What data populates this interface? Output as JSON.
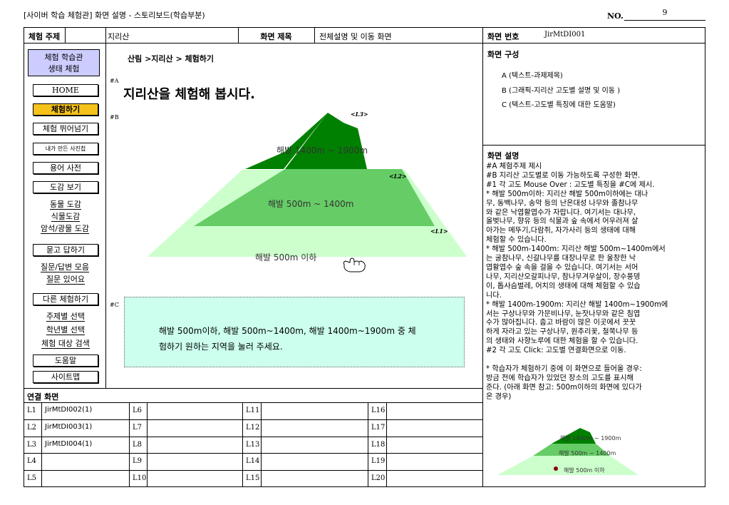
{
  "document": {
    "title": "[사이버 학습 체험관] 화면 설명 - 스토리보드(학습부분)",
    "no_label": "NO.",
    "no_value": "9"
  },
  "header": {
    "subject_label": "체험 주제",
    "subject_value": "지리산",
    "screen_title_label": "화면 제목",
    "screen_title_value": "전체설명 및 이동 화면",
    "screen_no_label": "화면 번호",
    "screen_no_value": "JirMtDI001"
  },
  "menu": {
    "top_line1": "체험 학습관",
    "top_line2": "생태 체험",
    "home": "HOME",
    "experience": "체험하기",
    "skip": "체험 뛰어넘기",
    "photos": "내가 만든 사진첩",
    "dictionary": "용어 사전",
    "guide": "도감 보기",
    "animals": "동물 도감",
    "plants": "식물도감",
    "rocks": "암석/광물 도감",
    "qa": "묻고 답하기",
    "qa_collection": "질문/답변 모음",
    "questions": "질문 있어요",
    "other": "다른 체험하기",
    "by_topic": "주제별 선택",
    "by_grade": "학년별 선택",
    "search": "체험 대상 검색",
    "help": "도움말",
    "sitemap": "사이트맵"
  },
  "main": {
    "breadcrumb": "산림 >지리산 > 체험하기",
    "tag_a": "#A",
    "title": "지리산을 체험해 봅시다.",
    "tag_b": "#B",
    "tag_c": "#C",
    "level3_text": "해발 1400m ~ 1900m",
    "level2_text": "해발 500m ~ 1400m",
    "level1_text": "해발 500m 이하",
    "label_l3": "<L3>",
    "label_l2": "<L2>",
    "label_l1": "<L1>",
    "help_line1": "해발 500m이하, 해발 500m~1400m, 해발 1400m~1900m 중 체",
    "help_line2": "험하기 원하는 지역을 눌러 주세요."
  },
  "right": {
    "composition_label": "화면 구성",
    "comp_a": "A (텍스트-과제제목)",
    "comp_b": "B (그래픽-지리산 고도별 설명 및 이동 )",
    "comp_c": "C (텍스트-고도별 특징에 대한 도움말)",
    "description_label": "화면 설명",
    "desc_lines": [
      "#A  체험주제 제시",
      "#B  지리산 고도별로 이동 가능하도록 구성한 화면.",
      "  #1 각 고도  Mouse Over : 고도별 특징을 #C에 제시.",
      "* 해발 500m이하: 지리산 해발 500m이하에는 대나",
      "무, 동백나무, 송악 등의 난온대성 나무와 졸참나무",
      "와 같은 낙엽활엽수가 자랍니다. 여기서는  대나무,",
      "올벚나무, 향유 등의 식물과 숲 속에서 어우러져 살",
      "아가는 메뚜기,다람쥐, 자가사리 등의 생태에 대해",
      "체험할 수 있습니다.",
      "* 해발 500m-1400m: 지리산 해발 500m~1400m에서",
      "는 굴참나무, 신갈나무를 대장나무로 한 울창한 낙",
      "엽활엽수 숲 속을 걸을 수 있습니다. 여기서는 서어",
      "나무, 지리산오갈피나무, 참나무겨우살이, 장수풍뎅",
      "이, 톱사슴벌레, 어치의 생태에 대해 체험할 수 있습",
      "니다.",
      "* 해발 1400m-1900m: 지리산 해발 1400m~1900m에",
      "서는 구상나무와 가문비나무, 눈잣나무와 같은 침엽",
      "수가 많아집니다. 춥고 바람이 많은 이곳에서 꿋꿋",
      "하게 자라고 있는 구상나무, 원추리꽃, 철쭉나무 등",
      "의 생태와 사향노루에 대한 체험을 할 수 있습니다.",
      "  #2 각 고도 Click: 고도별 연결화면으로 이동.",
      "",
      "* 학습자가 체험하기 중에 이 화면으로 들어올 경우:",
      "방금 전에 학습자가 있었던 장소의 고도를 표시해",
      "준다. (아래 화면 참고: 500m이하의 화면에 있다가",
      "온 경우)"
    ],
    "mini_l3": "해발 1400m ~ 1900m",
    "mini_l2": "해발 500m ~ 1400m",
    "mini_l1": "해발 500m 이하"
  },
  "links": {
    "label": "연결 화면",
    "rows": [
      [
        {
          "id": "L1",
          "value": "JirMtDI002(1)"
        },
        {
          "id": "L6",
          "value": ""
        },
        {
          "id": "L11",
          "value": ""
        },
        {
          "id": "L16",
          "value": ""
        }
      ],
      [
        {
          "id": "L2",
          "value": "JirMtDI003(1)"
        },
        {
          "id": "L7",
          "value": ""
        },
        {
          "id": "L12",
          "value": ""
        },
        {
          "id": "L17",
          "value": ""
        }
      ],
      [
        {
          "id": "L3",
          "value": "JirMtDI004(1)"
        },
        {
          "id": "L8",
          "value": ""
        },
        {
          "id": "L13",
          "value": ""
        },
        {
          "id": "L18",
          "value": ""
        }
      ],
      [
        {
          "id": "L4",
          "value": ""
        },
        {
          "id": "L9",
          "value": ""
        },
        {
          "id": "L14",
          "value": ""
        },
        {
          "id": "L19",
          "value": ""
        }
      ],
      [
        {
          "id": "L5",
          "value": ""
        },
        {
          "id": "L10",
          "value": ""
        },
        {
          "id": "L15",
          "value": ""
        },
        {
          "id": "L20",
          "value": ""
        }
      ]
    ]
  },
  "colors": {
    "level1": "#ccffcc",
    "level2": "#66cc66",
    "level3": "#008000",
    "active_menu": "#f5c21b",
    "menu_top": "#ccccff",
    "help_box": "#ccffee"
  }
}
